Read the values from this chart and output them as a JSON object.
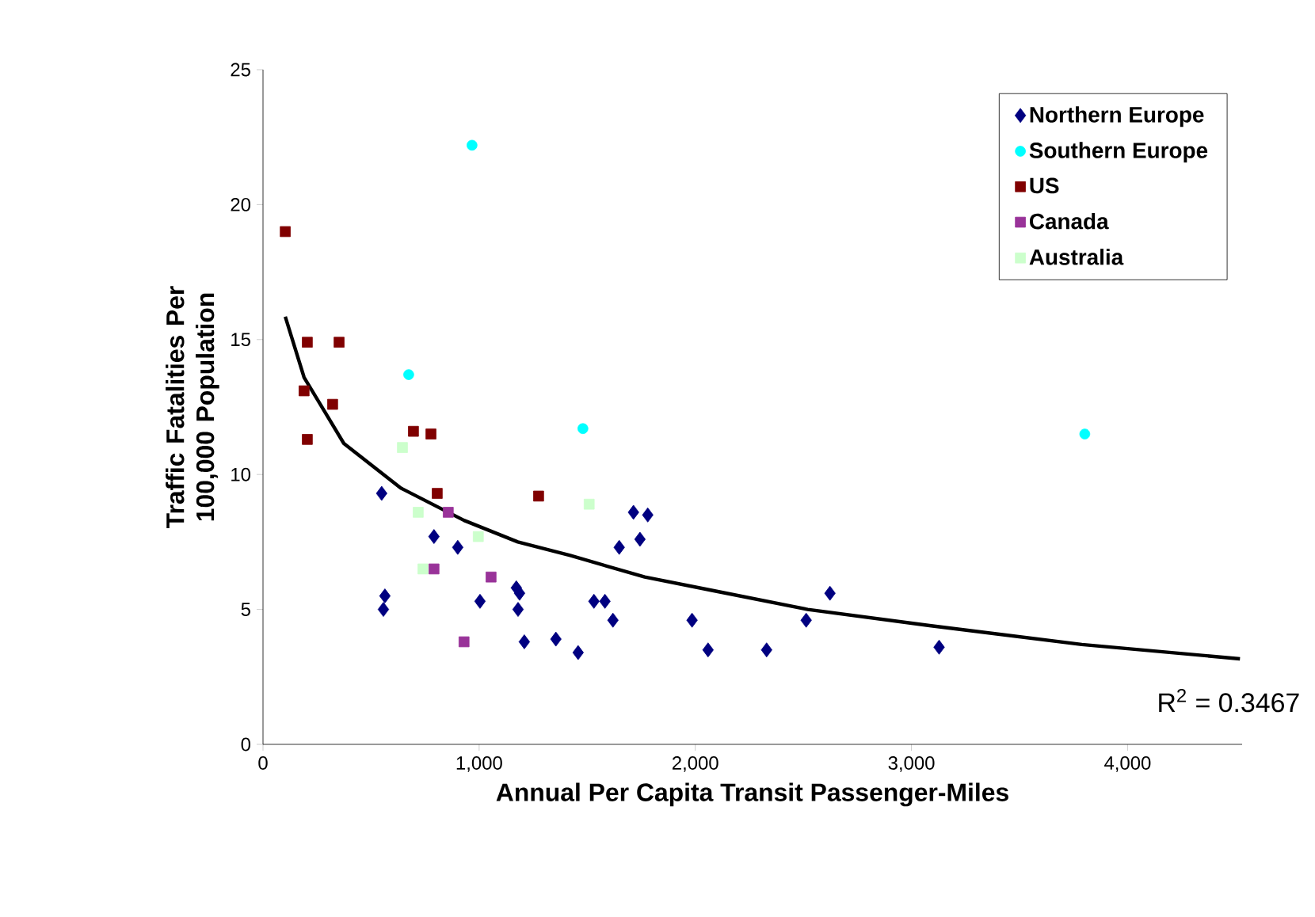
{
  "chart_data": {
    "type": "scatter",
    "xlabel": "Annual Per Capita Transit Passenger-Miles",
    "ylabel": "Traffic Fatalities Per 100,000 Population",
    "xlim": [
      0,
      4530
    ],
    "ylim": [
      0,
      25
    ],
    "xticks": [
      0,
      {
        "value": 1000,
        "label": "1,000"
      },
      {
        "value": 2000,
        "label": "2,000"
      },
      {
        "value": 3000,
        "label": "3,000"
      },
      {
        "value": 4000,
        "label": "4,000"
      }
    ],
    "yticks": [
      0,
      5,
      10,
      15,
      20,
      25
    ],
    "legend": "top right",
    "series": [
      {
        "name": "Northern Europe",
        "color": "#000080",
        "marker": "diamond",
        "x": [
          549,
          564,
          557,
          791,
          901,
          1004,
          1172,
          1187,
          1180,
          1209,
          1355,
          1458,
          1531,
          1582,
          1619,
          1648,
          1714,
          1744,
          1780,
          1985,
          2059,
          2330,
          2513,
          2623,
          3128
        ],
        "values": [
          9.3,
          5.5,
          5.0,
          7.7,
          7.3,
          5.3,
          5.8,
          5.6,
          5.0,
          3.8,
          3.9,
          3.4,
          5.3,
          5.3,
          4.6,
          7.3,
          8.6,
          7.6,
          8.5,
          4.6,
          3.5,
          3.5,
          4.6,
          5.6,
          3.6
        ]
      },
      {
        "name": "Southern Europe",
        "color": "#00ffff",
        "marker": "circle",
        "x": [
          967,
          674,
          1480,
          3802
        ],
        "values": [
          22.2,
          13.7,
          11.7,
          11.5
        ]
      },
      {
        "name": "US",
        "color": "#800000",
        "marker": "square",
        "x": [
          103,
          205,
          352,
          190,
          322,
          205,
          696,
          777,
          806,
          1275
        ],
        "values": [
          19.0,
          14.9,
          14.9,
          13.1,
          12.6,
          11.3,
          11.6,
          11.5,
          9.3,
          9.2
        ]
      },
      {
        "name": "Canada",
        "color": "#993399",
        "marker": "square",
        "x": [
          857,
          791,
          1055,
          930
        ],
        "values": [
          8.6,
          6.5,
          6.2,
          3.8
        ]
      },
      {
        "name": "Australia",
        "color": "#ccffcc",
        "marker": "square",
        "x": [
          645,
          718,
          996,
          740,
          1509
        ],
        "values": [
          11.0,
          8.6,
          7.7,
          6.5,
          8.9
        ]
      },
      {
        "type": "line",
        "color": "#000000",
        "marker": "none",
        "x": [
          103,
          190,
          374,
          637,
          930,
          1179,
          1421,
          1766,
          2081,
          2520,
          3084,
          3788,
          4520
        ],
        "values": [
          15.85,
          13.6,
          11.15,
          9.5,
          8.3,
          7.5,
          7.0,
          6.2,
          5.7,
          5.0,
          4.4,
          3.7,
          3.17
        ]
      }
    ],
    "annotations": [
      "R$^{2}$ = 0.3467"
    ]
  }
}
